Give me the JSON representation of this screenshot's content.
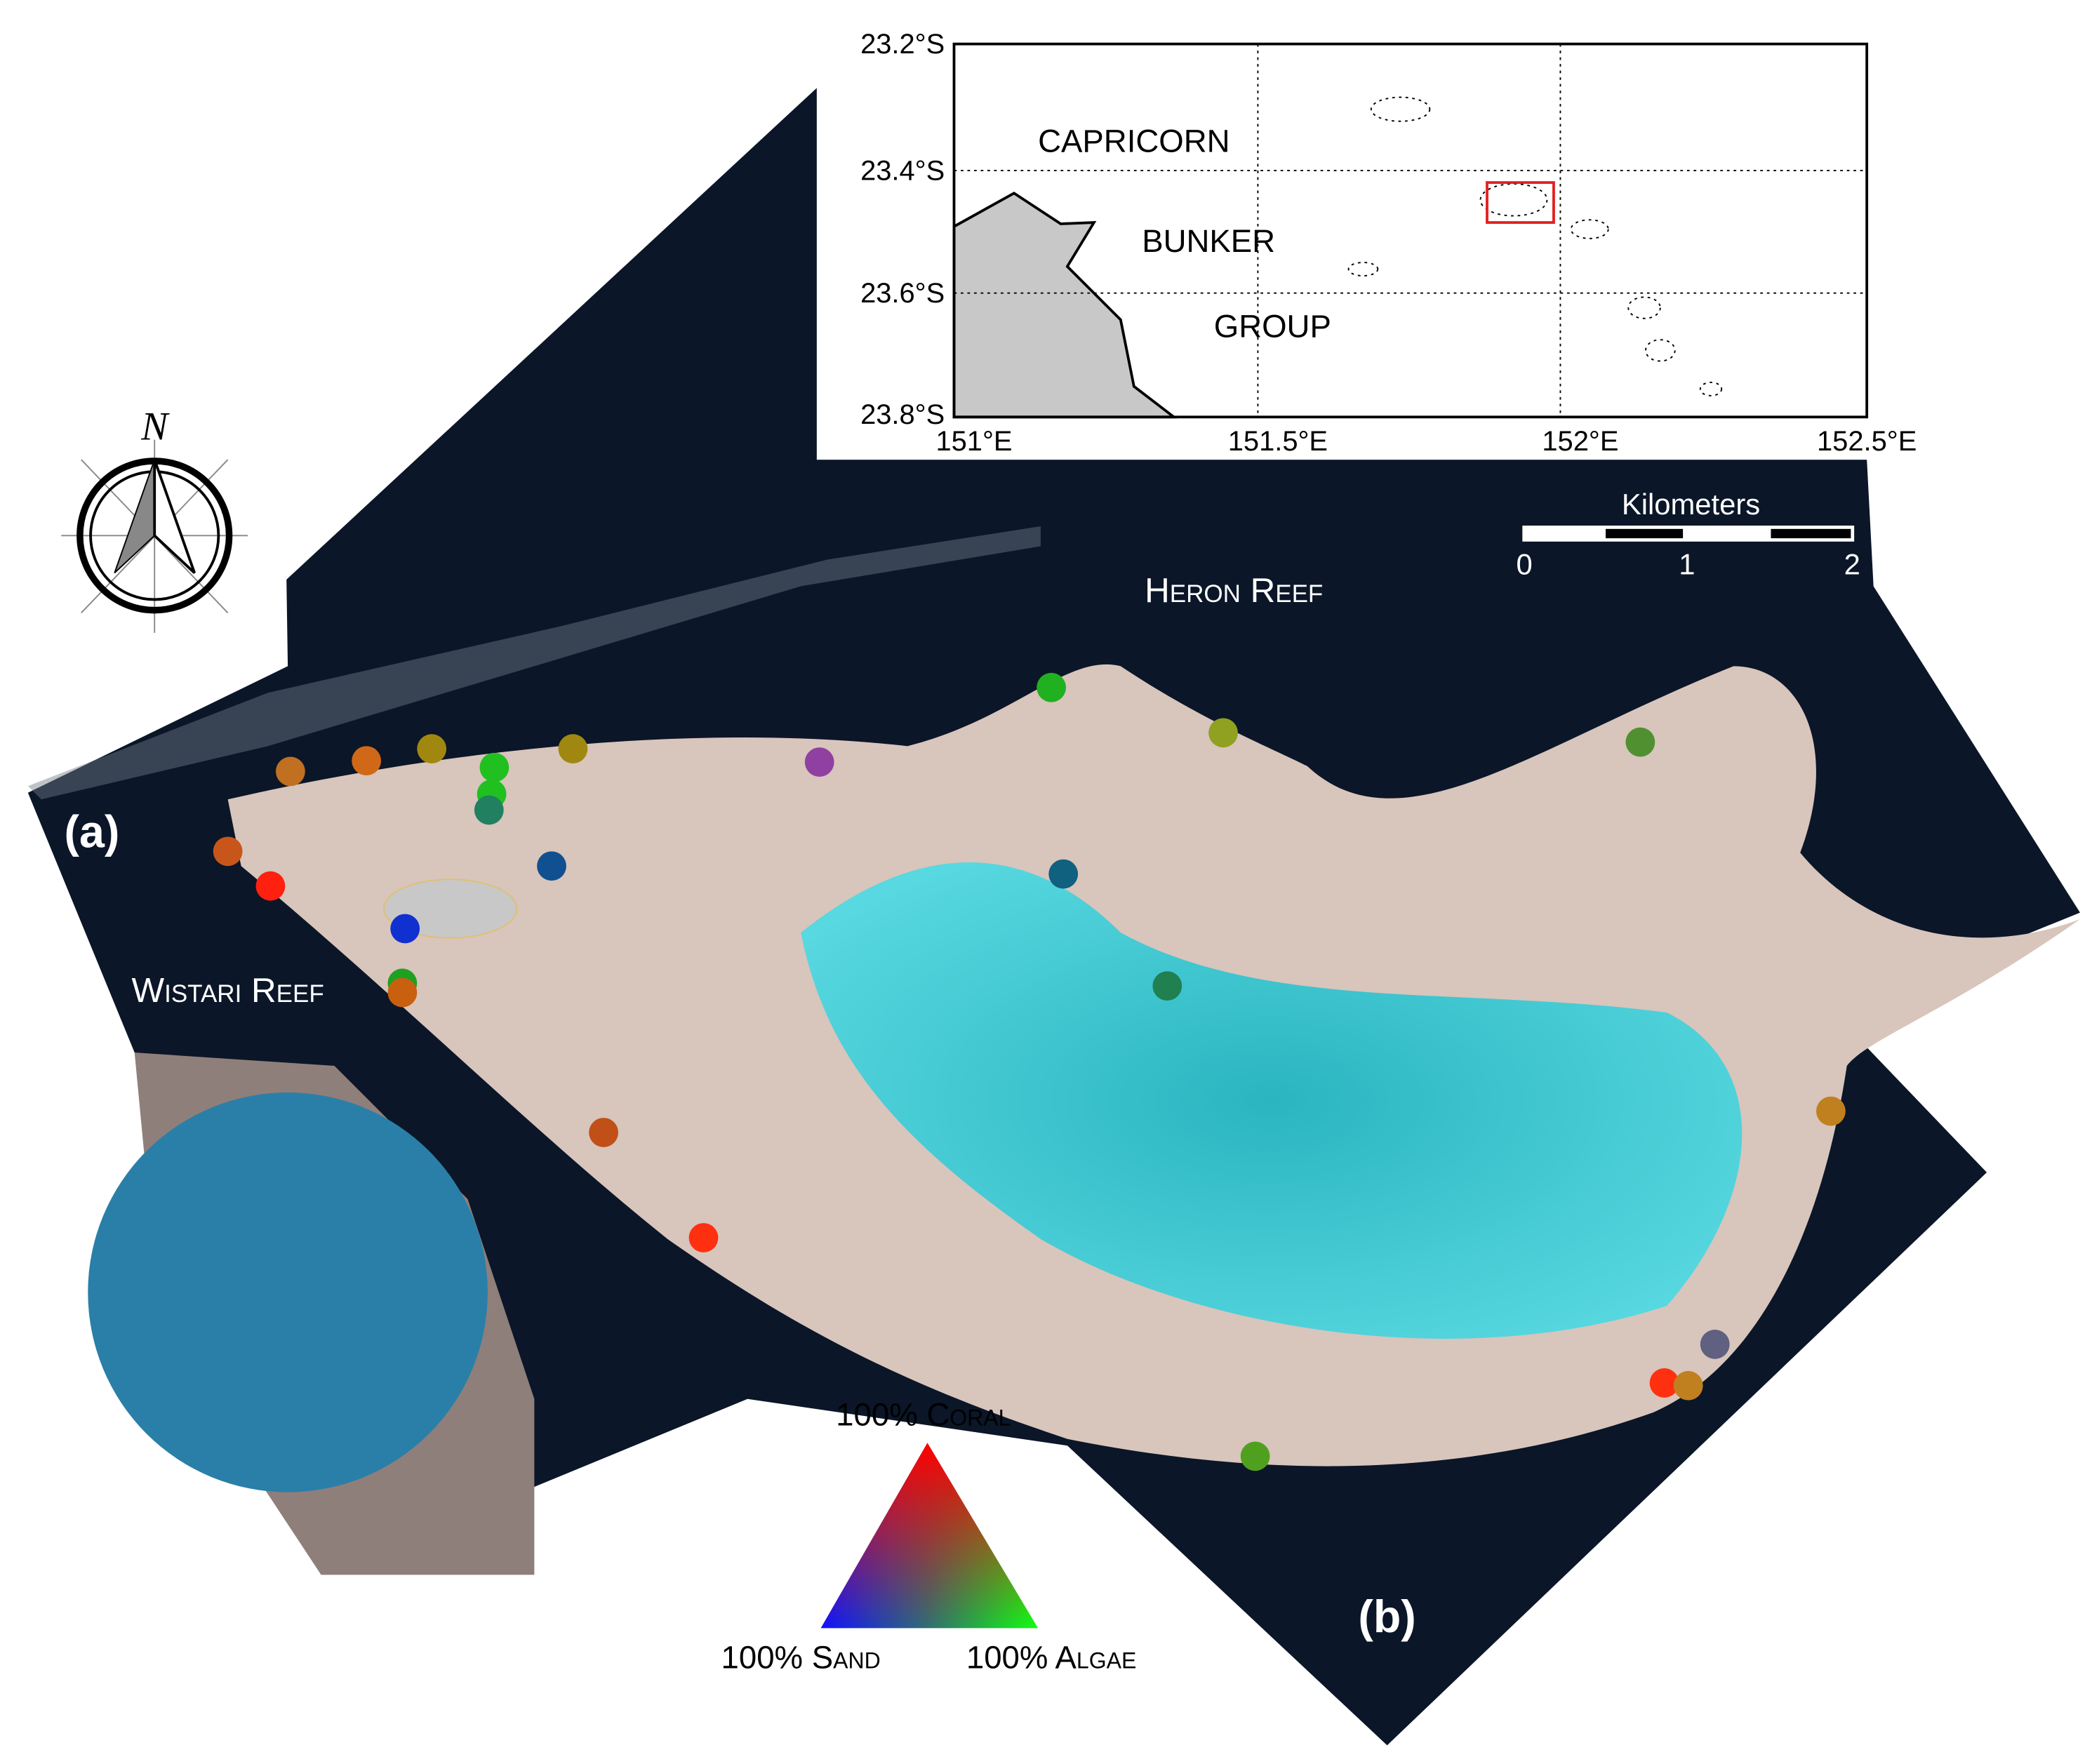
{
  "inset_map": {
    "lat_labels": [
      "23.2°S",
      "23.4°S",
      "23.6°S",
      "23.8°S"
    ],
    "lon_labels": [
      "151°E",
      "151.5°E",
      "152°E",
      "152.5°E"
    ],
    "place_labels": [
      "CAPRICORN",
      "BUNKER",
      "GROUP"
    ]
  },
  "scale_bar": {
    "title": "Kilometers",
    "labels": [
      "0",
      "1",
      "2"
    ]
  },
  "compass": {
    "label": "N"
  },
  "map_labels": {
    "heron": "Heron Reef",
    "wistari": "Wistari Reef",
    "panel_a": "(a)",
    "panel_b": "(b)"
  },
  "legend": {
    "top": "100% Coral",
    "left": "100% Sand",
    "right": "100% Algae"
  }
}
